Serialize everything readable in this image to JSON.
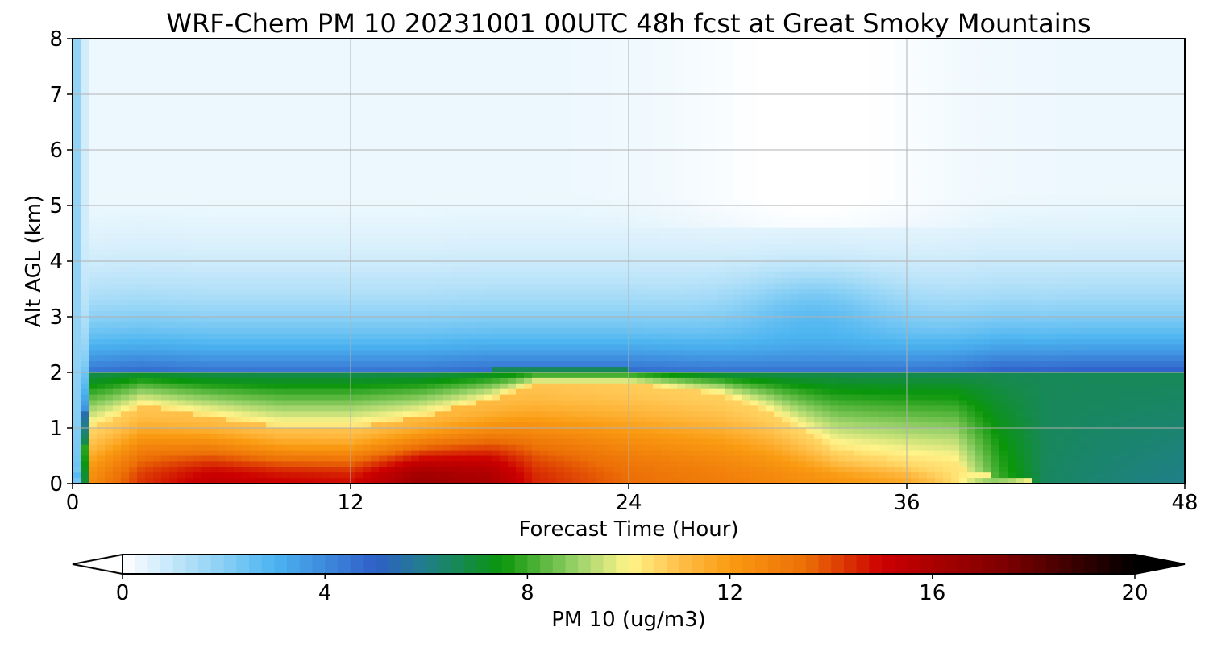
{
  "chart_data": {
    "type": "heatmap",
    "title": "WRF-Chem PM 10  20231001 00UTC 48h fcst at Great Smoky Mountains",
    "xlabel": "Forecast Time (Hour)",
    "ylabel": "Alt AGL (km)",
    "xlim": [
      0,
      48
    ],
    "ylim": [
      0,
      8
    ],
    "xticks": [
      "0",
      "12",
      "24",
      "36",
      "48"
    ],
    "yticks": [
      "0",
      "1",
      "2",
      "3",
      "4",
      "5",
      "6",
      "7",
      "8"
    ],
    "grid": true,
    "colorbar": {
      "label": "PM 10  (ug/m3)",
      "range": [
        0,
        20
      ],
      "extend": "both",
      "ticks": [
        "0",
        "4",
        "8",
        "12",
        "16",
        "20"
      ],
      "stops": [
        {
          "value": 0,
          "color": "#ffffff"
        },
        {
          "value": 2,
          "color": "#87cff5"
        },
        {
          "value": 3,
          "color": "#4cb4f0"
        },
        {
          "value": 5,
          "color": "#2f5fc8"
        },
        {
          "value": 6,
          "color": "#207f8a"
        },
        {
          "value": 7.5,
          "color": "#0a960a"
        },
        {
          "value": 9,
          "color": "#9dd36b"
        },
        {
          "value": 10,
          "color": "#fff48a"
        },
        {
          "value": 11,
          "color": "#ffc04a"
        },
        {
          "value": 12,
          "color": "#fa9b12"
        },
        {
          "value": 13.5,
          "color": "#ec6f06"
        },
        {
          "value": 15,
          "color": "#cc0000"
        },
        {
          "value": 17.5,
          "color": "#7a0000"
        },
        {
          "value": 20,
          "color": "#000000"
        }
      ]
    },
    "profile": {
      "hours": [
        0,
        0.8,
        3,
        6,
        9,
        12,
        15,
        18,
        20,
        24,
        28,
        30,
        33,
        36,
        38,
        40,
        42,
        44,
        48
      ],
      "layer_top_km": [
        0,
        2.0,
        2.05,
        2.0,
        2.0,
        2.0,
        2.0,
        2.05,
        2.05,
        2.05,
        2.0,
        2.0,
        2.0,
        2.0,
        2.0,
        2.05,
        2.0,
        2.0,
        2.0
      ],
      "core_km": [
        0,
        1.0,
        1.4,
        1.2,
        1.0,
        1.0,
        1.2,
        1.5,
        1.8,
        1.8,
        1.6,
        1.3,
        0.6,
        0.4,
        0.3,
        0.1,
        0.02,
        0.01,
        0.01
      ],
      "pm10_surface": [
        2,
        12.5,
        14.3,
        15.3,
        15.0,
        14.8,
        16.5,
        16.0,
        14.5,
        13.5,
        13.0,
        12.7,
        12.2,
        11.6,
        10.5,
        8.0,
        6.5,
        6.3,
        6.0
      ]
    }
  }
}
